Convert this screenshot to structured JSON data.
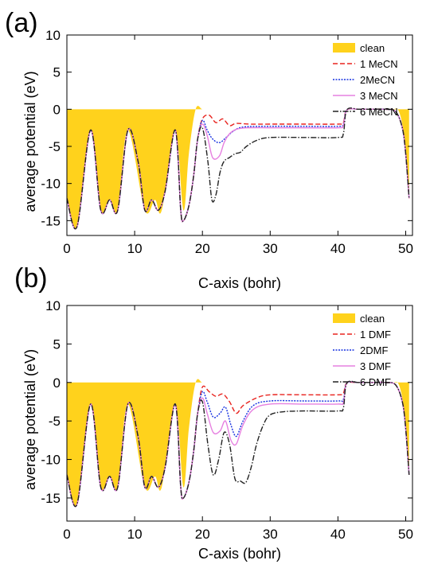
{
  "chart_data": [
    {
      "panel_label": "(a)",
      "type": "line",
      "xlabel": "C-axis (bohr)",
      "ylabel": "average potential (eV)",
      "xlim": [
        0,
        51
      ],
      "ylim": [
        -17,
        10
      ],
      "xticks": [
        "0",
        "10",
        "20",
        "30",
        "40",
        "50"
      ],
      "yticks": [
        "10",
        "5",
        "0",
        "-5",
        "-10",
        "-15"
      ],
      "legend_position": "top-right",
      "series": [
        {
          "name": "clean",
          "style": "filled-area",
          "color": "#ffd21c",
          "x": [
            0,
            1.5,
            3.5,
            5,
            6.3,
            7.5,
            9,
            11.5,
            13,
            14,
            16,
            17.2,
            18,
            19,
            20,
            21,
            22,
            24,
            26,
            30,
            35,
            40.2,
            41,
            42,
            44,
            46,
            48,
            49,
            49.8,
            50.5
          ],
          "y": [
            -12,
            -15.8,
            -2.8,
            -13.6,
            -12.2,
            -13.6,
            -2.8,
            -13.6,
            -12.2,
            -13.6,
            -2.8,
            -13.6,
            -6,
            0,
            0,
            0,
            0,
            0,
            0,
            0,
            0,
            0,
            0,
            0,
            0,
            0,
            0,
            -0.3,
            -4,
            -12
          ]
        },
        {
          "name": "1 MeCN",
          "style": "dashed",
          "color": "#e8231e",
          "x": [
            0,
            1.5,
            3.5,
            5,
            6.3,
            7.5,
            9,
            10.5,
            11.5,
            12.5,
            13.5,
            14.5,
            16,
            16.8,
            17.2,
            18,
            18.7,
            19.3,
            20,
            21,
            22,
            23,
            24,
            25,
            27,
            30,
            35,
            40,
            40.8,
            41.3,
            43,
            45,
            47,
            48.5,
            49.5,
            50,
            50.5
          ],
          "y": [
            -12,
            -15.8,
            -2.8,
            -13.6,
            -12.2,
            -13.6,
            -2.8,
            -7,
            -13.6,
            -12.2,
            -13.6,
            -11,
            -2.8,
            -13.6,
            -15,
            -13,
            -9,
            -4,
            -1.3,
            -0.8,
            -1.8,
            -1.3,
            -2.2,
            -1.9,
            -2,
            -2,
            -2,
            -2,
            -1.8,
            -0.1,
            0,
            0,
            0,
            -0.3,
            -2.5,
            -6,
            -12
          ]
        },
        {
          "name": "2MeCN",
          "style": "dotted",
          "color": "#1530e0",
          "x": [
            0,
            1.5,
            3.5,
            5,
            6.3,
            7.5,
            9,
            10.5,
            11.5,
            12.5,
            13.5,
            14.5,
            16,
            16.8,
            17.2,
            18,
            18.7,
            19.3,
            20,
            20.7,
            21.5,
            22.5,
            23.5,
            24.5,
            26,
            30,
            35,
            40,
            40.8,
            41.3,
            43,
            45,
            47,
            48.5,
            49.5,
            50,
            50.5
          ],
          "y": [
            -12,
            -15.8,
            -2.8,
            -13.6,
            -12.2,
            -13.6,
            -2.8,
            -7,
            -13.6,
            -12.2,
            -13.6,
            -11,
            -2.8,
            -13.6,
            -15,
            -13,
            -9,
            -4,
            -1.5,
            -2.8,
            -4,
            -4.5,
            -3.8,
            -3,
            -2.4,
            -2.3,
            -2.3,
            -2.3,
            -2,
            -0.1,
            0,
            0,
            0,
            -0.3,
            -2.5,
            -6,
            -12
          ]
        },
        {
          "name": "3 MeCN",
          "style": "solid",
          "color": "#e680e0",
          "x": [
            0,
            1.5,
            3.5,
            5,
            6.3,
            7.5,
            9,
            10.5,
            11.5,
            12.5,
            13.5,
            14.5,
            16,
            16.8,
            17.2,
            18,
            18.7,
            19.3,
            20,
            20.7,
            21.5,
            22.5,
            23.2,
            24,
            25,
            26.5,
            30,
            35,
            40,
            40.8,
            41.3,
            43,
            45,
            47,
            48.5,
            49.5,
            50,
            50.5
          ],
          "y": [
            -12,
            -15.8,
            -2.8,
            -13.6,
            -12.2,
            -13.6,
            -2.8,
            -7,
            -13.6,
            -12.2,
            -13.6,
            -11,
            -2.8,
            -13.6,
            -15,
            -13,
            -9,
            -4,
            -2,
            -3.5,
            -6.5,
            -6.3,
            -4.5,
            -3.3,
            -2.7,
            -2.5,
            -2.5,
            -2.5,
            -2.5,
            -2.2,
            -0.1,
            0,
            0,
            0,
            -0.3,
            -2.5,
            -6,
            -12
          ]
        },
        {
          "name": "6 MeCN",
          "style": "dash-dot",
          "color": "#222222",
          "x": [
            0,
            1.5,
            3.5,
            5,
            6.3,
            7.5,
            9,
            10.5,
            11.5,
            12.5,
            13.5,
            14.5,
            16,
            16.8,
            17.2,
            18,
            18.7,
            19.3,
            20,
            20.8,
            21.4,
            22,
            22.6,
            23.2,
            24,
            24.8,
            25.6,
            26.5,
            28,
            30,
            35,
            40,
            40.8,
            41.3,
            43,
            45,
            47,
            48.5,
            49.5,
            50,
            50.5
          ],
          "y": [
            -12,
            -15.8,
            -2.8,
            -13.6,
            -12.2,
            -13.6,
            -2.8,
            -7,
            -13.6,
            -12.2,
            -13.6,
            -11,
            -2.8,
            -13.6,
            -15,
            -13,
            -9,
            -4,
            -2.5,
            -7,
            -12.2,
            -11.5,
            -8.5,
            -7,
            -6.5,
            -6,
            -5.8,
            -5,
            -4.2,
            -3.8,
            -3.8,
            -3.8,
            -3.3,
            -0.1,
            0,
            0,
            0,
            -0.3,
            -2.5,
            -6,
            -12
          ]
        }
      ]
    },
    {
      "panel_label": "(b)",
      "type": "line",
      "xlabel": "C-axis (bohr)",
      "ylabel": "average potential (eV)",
      "xlim": [
        0,
        51
      ],
      "ylim": [
        -18,
        10
      ],
      "xticks": [
        "0",
        "10",
        "20",
        "30",
        "40",
        "50"
      ],
      "yticks": [
        "10",
        "5",
        "0",
        "-5",
        "-10",
        "-15"
      ],
      "legend_position": "top-right",
      "series": [
        {
          "name": "clean",
          "style": "filled-area",
          "color": "#ffd21c",
          "x": [
            0,
            1.5,
            3.5,
            5,
            6.3,
            7.5,
            9,
            11.5,
            13,
            14,
            16,
            17.2,
            18,
            19,
            20,
            21,
            22,
            24,
            26,
            30,
            35,
            40.2,
            41,
            42,
            44,
            46,
            48,
            49,
            49.8,
            50.5
          ],
          "y": [
            -12,
            -15.8,
            -2.8,
            -13.6,
            -12.2,
            -13.6,
            -2.8,
            -13.6,
            -12.2,
            -13.6,
            -2.8,
            -13.6,
            -6,
            0,
            0,
            0,
            0,
            0,
            0,
            0,
            0,
            0,
            0,
            0,
            0,
            0,
            0,
            -0.3,
            -4,
            -12
          ]
        },
        {
          "name": "1 DMF",
          "style": "dashed",
          "color": "#e8231e",
          "x": [
            0,
            1.5,
            3.5,
            5,
            6.3,
            7.5,
            9,
            10.5,
            11.5,
            12.5,
            13.5,
            14.5,
            16,
            16.8,
            17.2,
            18,
            18.7,
            19.3,
            20,
            21,
            22,
            23,
            24,
            25,
            26,
            28,
            30,
            35,
            40,
            40.8,
            41.3,
            43,
            45,
            47,
            48.5,
            49.5,
            50,
            50.5
          ],
          "y": [
            -12,
            -15.8,
            -2.8,
            -13.6,
            -12.2,
            -13.6,
            -2.8,
            -7,
            -13.6,
            -12.2,
            -13.6,
            -11,
            -2.8,
            -13.6,
            -15,
            -13,
            -9,
            -4,
            -0.6,
            -1.2,
            -1.8,
            -1.5,
            -2.5,
            -4,
            -3,
            -2,
            -1.6,
            -1.6,
            -1.6,
            -1.4,
            -0.1,
            0,
            0,
            0,
            -0.3,
            -2.5,
            -6,
            -12
          ]
        },
        {
          "name": "2DMF",
          "style": "dotted",
          "color": "#1530e0",
          "x": [
            0,
            1.5,
            3.5,
            5,
            6.3,
            7.5,
            9,
            10.5,
            11.5,
            12.5,
            13.5,
            14.5,
            16,
            16.8,
            17.2,
            18,
            18.7,
            19.3,
            20,
            20.7,
            21.6,
            22.6,
            23.4,
            24.2,
            25,
            26,
            27.5,
            30,
            35,
            40,
            40.8,
            41.3,
            43,
            45,
            47,
            48.5,
            49.5,
            50,
            50.5
          ],
          "y": [
            -12,
            -15.8,
            -2.8,
            -13.6,
            -12.2,
            -13.6,
            -2.8,
            -7,
            -13.6,
            -12.2,
            -13.6,
            -11,
            -2.8,
            -13.6,
            -15,
            -13,
            -9,
            -4,
            -1.2,
            -2.5,
            -4.5,
            -4,
            -3.2,
            -5.5,
            -7,
            -5,
            -3,
            -2.4,
            -2.4,
            -2.4,
            -2.2,
            -0.1,
            0,
            0,
            0,
            -0.3,
            -2.5,
            -6,
            -12
          ]
        },
        {
          "name": "3 DMF",
          "style": "solid",
          "color": "#e680e0",
          "x": [
            0,
            1.5,
            3.5,
            5,
            6.3,
            7.5,
            9,
            10.5,
            11.5,
            12.5,
            13.5,
            14.5,
            16,
            16.8,
            17.2,
            18,
            18.7,
            19.3,
            20,
            20.7,
            21.6,
            22.6,
            23.4,
            24.2,
            25,
            26,
            27.5,
            30,
            35,
            40,
            40.8,
            41.3,
            43,
            45,
            47,
            48.5,
            49.5,
            50,
            50.5
          ],
          "y": [
            -12,
            -15.8,
            -2.8,
            -13.6,
            -12.2,
            -13.6,
            -2.8,
            -7,
            -13.6,
            -12.2,
            -13.6,
            -11,
            -2.8,
            -13.6,
            -15,
            -13,
            -9,
            -4,
            -2,
            -4,
            -6.5,
            -6.3,
            -5,
            -7.5,
            -8,
            -5.5,
            -3.5,
            -2.8,
            -2.8,
            -2.8,
            -2.6,
            -0.1,
            0,
            0,
            0,
            -0.3,
            -2.5,
            -6,
            -12
          ]
        },
        {
          "name": "6 DMF",
          "style": "dash-dot",
          "color": "#222222",
          "x": [
            0,
            1.5,
            3.5,
            5,
            6.3,
            7.5,
            9,
            10.5,
            11.5,
            12.5,
            13.5,
            14.5,
            16,
            16.8,
            17.2,
            18,
            18.7,
            19.3,
            20,
            20.8,
            21.6,
            22.4,
            23.2,
            24,
            24.8,
            25.6,
            26.4,
            27.2,
            28,
            29,
            30,
            32,
            35,
            40,
            40.8,
            41.3,
            43,
            45,
            47,
            48.5,
            49.5,
            50,
            50.5
          ],
          "y": [
            -12,
            -15.8,
            -2.8,
            -13.6,
            -12.2,
            -13.6,
            -2.8,
            -7,
            -13.6,
            -12.2,
            -13.6,
            -11,
            -2.8,
            -13.6,
            -15,
            -13,
            -9,
            -4,
            -2.5,
            -8,
            -12,
            -10,
            -6.5,
            -8,
            -12.5,
            -12.8,
            -13,
            -11,
            -8,
            -5.5,
            -4.2,
            -3.8,
            -3.7,
            -3.7,
            -3.3,
            -0.1,
            0,
            0,
            0,
            -0.3,
            -2.5,
            -6,
            -12
          ]
        }
      ]
    }
  ]
}
